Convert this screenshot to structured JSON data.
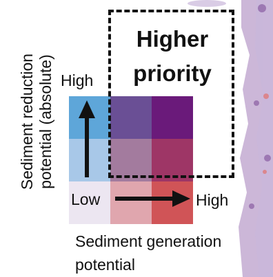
{
  "title": "Higher priority",
  "y_axis": {
    "label_line1": "Sediment reduction",
    "label_line2": "potential (absolute)",
    "high_label": "High"
  },
  "x_axis": {
    "label_line1": "Sediment generation",
    "label_line2": "potential",
    "low_label": "Low",
    "high_label": "High"
  },
  "legend_grid": {
    "rows": [
      [
        "#5ea6d9",
        "#6a4f95",
        "#6a1a7a"
      ],
      [
        "#a8c8e8",
        "#a37b9e",
        "#9e3666"
      ],
      [
        "#ece6f1",
        "#e0a6ae",
        "#d05457"
      ]
    ]
  },
  "colors": {
    "arrow": "#111111",
    "map_purple": "#a27bb8",
    "map_light": "#c9b7db"
  }
}
